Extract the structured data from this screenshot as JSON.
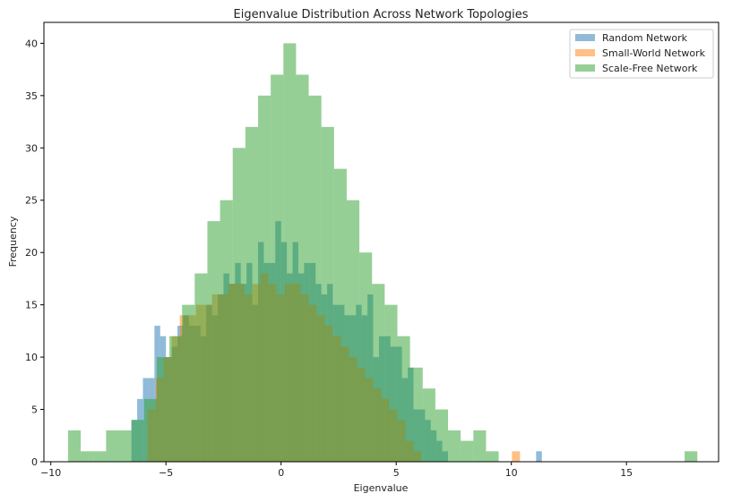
{
  "chart_data": {
    "type": "bar",
    "subtype": "histogram-overlay",
    "title": "Eigenvalue Distribution Across Network Topologies",
    "xlabel": "Eigenvalue",
    "ylabel": "Frequency",
    "xlim": [
      -10.3,
      19.0
    ],
    "ylim": [
      0,
      42
    ],
    "xticks": [
      -10,
      -5,
      0,
      5,
      10,
      15
    ],
    "xtick_labels": [
      "−10",
      "−5",
      "0",
      "5",
      "10",
      "15"
    ],
    "yticks": [
      0,
      5,
      10,
      15,
      20,
      25,
      30,
      35,
      40
    ],
    "yticks_labels": [
      "0",
      "5",
      "10",
      "15",
      "20",
      "25",
      "30",
      "35",
      "40"
    ],
    "grid": false,
    "legend_position": "top-right",
    "series": [
      {
        "name": "Random Network",
        "color": "#1f77b4",
        "alpha": 0.5,
        "bin_start": -6.5,
        "bin_width": 0.25,
        "counts": [
          4,
          6,
          8,
          8,
          13,
          12,
          10,
          11,
          13,
          14,
          13,
          13,
          12,
          15,
          14,
          16,
          18,
          17,
          19,
          17,
          19,
          15,
          21,
          19,
          19,
          23,
          21,
          18,
          21,
          18,
          19,
          19,
          17,
          16,
          17,
          15,
          15,
          14,
          14,
          15,
          14,
          16,
          10,
          12,
          12,
          11,
          11,
          8,
          9,
          5,
          5,
          4,
          3,
          2,
          1
        ],
        "outliers": [
          {
            "x": 11.2,
            "count": 1
          }
        ]
      },
      {
        "name": "Small-World Network",
        "color": "#ff7f0e",
        "alpha": 0.5,
        "bin_start": -5.8,
        "bin_width": 0.35,
        "counts": [
          5,
          8,
          10,
          12,
          14,
          14,
          15,
          15,
          16,
          16,
          17,
          17,
          16,
          17,
          18,
          17,
          16,
          17,
          17,
          16,
          15,
          14,
          13,
          12,
          11,
          10,
          9,
          8,
          7,
          6,
          5,
          4,
          2,
          1
        ],
        "outliers": [
          {
            "x": 10.2,
            "count": 1
          }
        ]
      },
      {
        "name": "Scale-Free Network",
        "color": "#2ca02c",
        "alpha": 0.5,
        "bin_start": -9.25,
        "bin_width": 0.55,
        "counts": [
          3,
          1,
          1,
          3,
          3,
          4,
          6,
          10,
          12,
          15,
          18,
          23,
          25,
          30,
          32,
          35,
          37,
          40,
          37,
          35,
          32,
          28,
          25,
          20,
          17,
          15,
          12,
          9,
          7,
          5,
          3,
          2,
          3,
          1
        ],
        "outliers": [
          {
            "x": 17.8,
            "count": 1
          }
        ]
      }
    ]
  }
}
